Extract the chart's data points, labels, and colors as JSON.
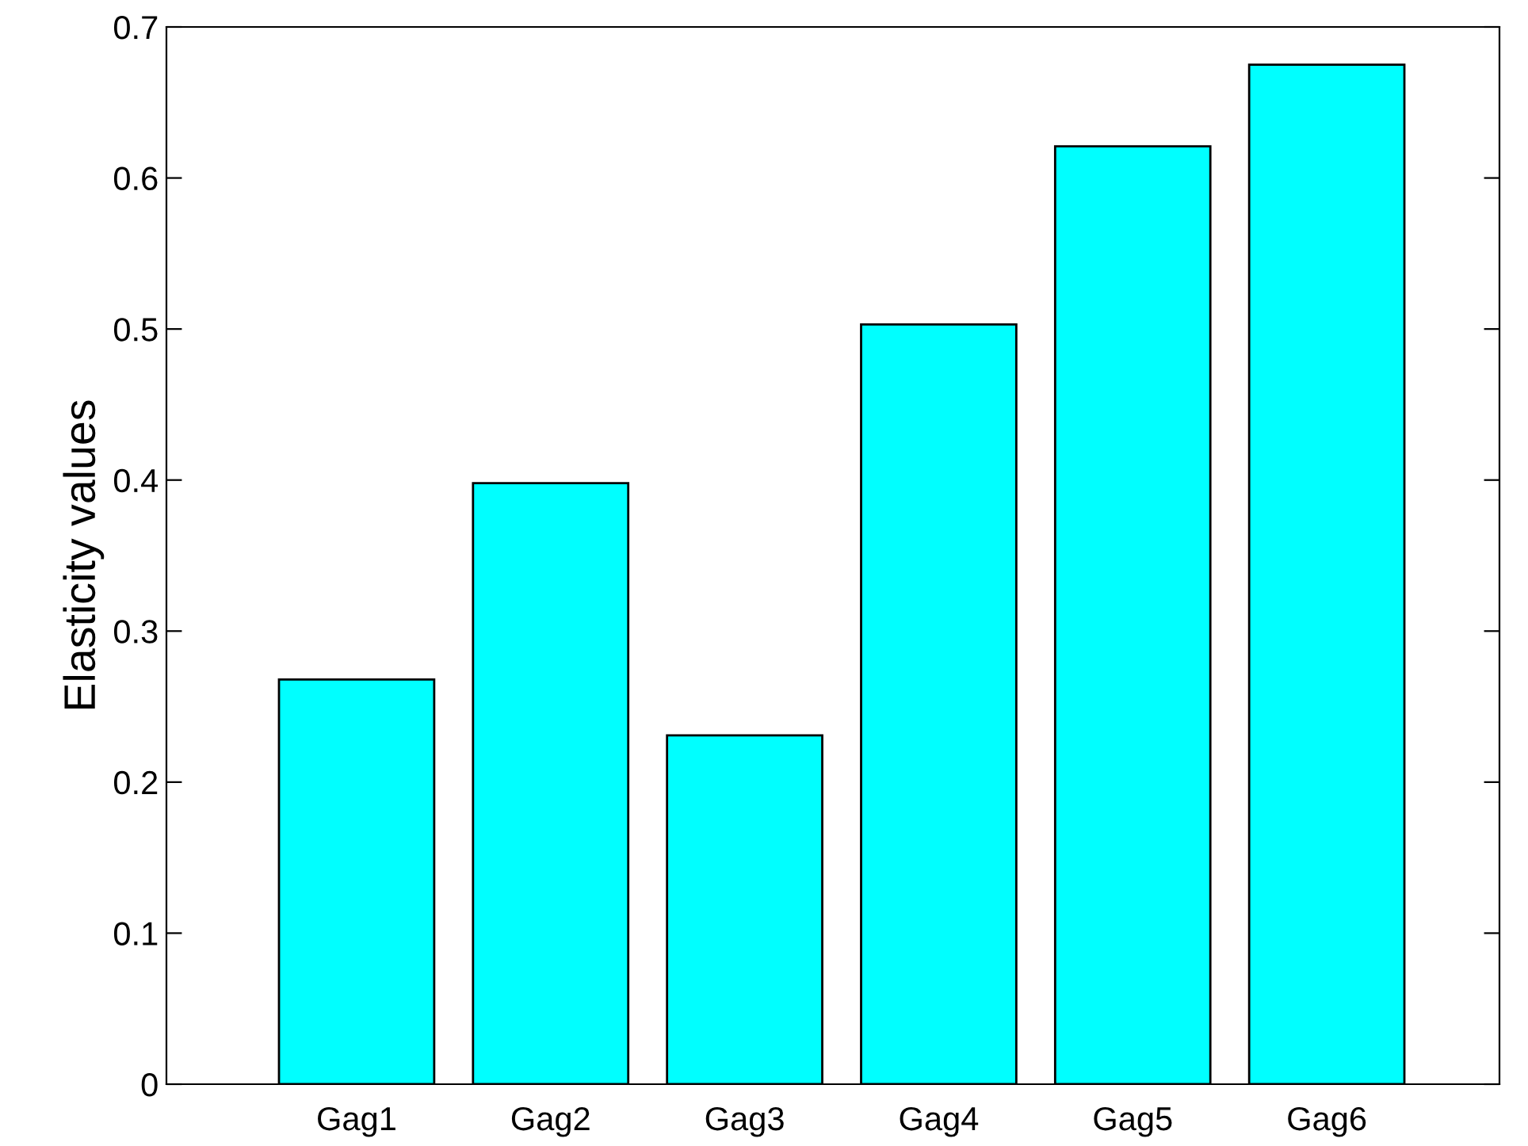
{
  "chart_data": {
    "type": "bar",
    "ylabel": "Elasticity values",
    "categories": [
      "Gag1",
      "Gag2",
      "Gag3",
      "Gag4",
      "Gag5",
      "Gag6"
    ],
    "values": [
      0.268,
      0.398,
      0.231,
      0.503,
      0.621,
      0.675
    ],
    "color": "#00ffff",
    "ylim": [
      0,
      0.7
    ],
    "yticks": [
      0,
      0.1,
      0.2,
      0.3,
      0.4,
      0.5,
      0.6,
      0.7
    ],
    "grid": false,
    "legend": false
  }
}
